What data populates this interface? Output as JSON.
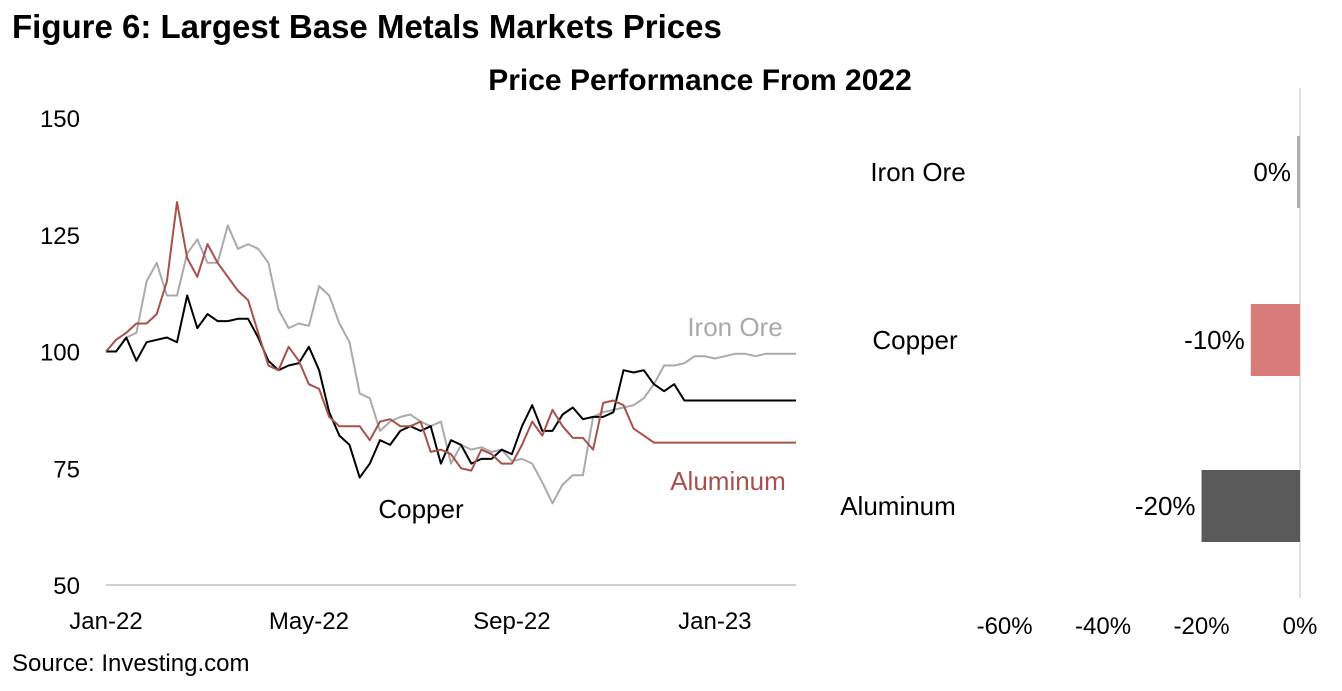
{
  "figure_title": "Figure 6: Largest Base Metals Markets Prices",
  "source": "Source: Investing.com",
  "chart_data": [
    {
      "type": "line",
      "title": "Price Performance From 2022",
      "xlabel": "",
      "ylabel": "",
      "ylim": [
        50,
        150
      ],
      "yticks": [
        50,
        75,
        100,
        125,
        150
      ],
      "xlim": [
        0,
        68
      ],
      "xtick_labels": [
        {
          "label": "Jan-22",
          "x": 0
        },
        {
          "label": "May-22",
          "x": 20
        },
        {
          "label": "Sep-22",
          "x": 40
        },
        {
          "label": "Jan-23",
          "x": 60
        }
      ],
      "series": [
        {
          "name": "Iron Ore",
          "label": "Iron Ore",
          "color": "#aaaaaa",
          "x": [
            0,
            1,
            2,
            3,
            4,
            5,
            6,
            7,
            8,
            9,
            10,
            11,
            12,
            13,
            14,
            15,
            16,
            17,
            18,
            19,
            20,
            21,
            22,
            23,
            24,
            25,
            26,
            27,
            28,
            29,
            30,
            31,
            32,
            33,
            34,
            35,
            36,
            37,
            38,
            39,
            40,
            41,
            42,
            43,
            44,
            45,
            46,
            47,
            48,
            49,
            50,
            51,
            52,
            53,
            54,
            55,
            56,
            57,
            58,
            59,
            60,
            61,
            62,
            63,
            64,
            65,
            66,
            67,
            68
          ],
          "values": [
            100,
            100,
            103,
            104,
            115,
            119,
            112,
            112,
            121,
            124,
            119,
            119,
            127,
            122,
            123,
            122,
            119,
            109,
            105,
            106,
            105.5,
            114,
            112,
            106,
            102,
            91,
            90,
            83,
            85,
            86,
            86.5,
            85,
            84,
            85,
            76,
            80,
            79,
            79.5,
            78.5,
            79,
            76.5,
            77,
            76,
            72,
            67.5,
            71.5,
            73.5,
            73.5,
            86,
            87,
            87.5,
            88,
            88.5,
            90,
            93,
            97,
            97,
            97.5,
            99,
            99,
            98.5,
            99,
            99.5,
            99.5,
            99,
            99.5,
            99.5,
            99.5,
            99.5
          ]
        },
        {
          "name": "Copper",
          "label": "Copper",
          "color": "#000000",
          "x": [
            0,
            1,
            2,
            3,
            4,
            5,
            6,
            7,
            8,
            9,
            10,
            11,
            12,
            13,
            14,
            15,
            16,
            17,
            18,
            19,
            20,
            21,
            22,
            23,
            24,
            25,
            26,
            27,
            28,
            29,
            30,
            31,
            32,
            33,
            34,
            35,
            36,
            37,
            38,
            39,
            40,
            41,
            42,
            43,
            44,
            45,
            46,
            47,
            48,
            49,
            50,
            51,
            52,
            53,
            54,
            55,
            56,
            57,
            58,
            59,
            60,
            61,
            62,
            63,
            64,
            65,
            66,
            67,
            68
          ],
          "values": [
            100,
            100,
            103,
            98,
            102,
            102.5,
            103,
            102,
            112,
            105,
            108,
            106.5,
            106.5,
            107,
            107,
            103,
            98,
            96,
            97,
            97.5,
            101,
            96,
            87,
            82,
            80,
            73,
            76,
            81,
            80,
            83,
            84,
            83,
            84,
            76,
            81,
            80,
            76,
            77,
            77,
            79,
            78,
            84,
            88.5,
            83,
            83,
            86.5,
            88,
            85.5,
            86,
            86,
            87,
            96,
            95.5,
            96,
            93,
            91.5,
            93,
            89.5,
            89.5,
            89.5,
            89.5,
            89.5,
            89.5,
            89.5,
            89.5,
            89.5,
            89.5,
            89.5,
            89.5
          ]
        },
        {
          "name": "Aluminum",
          "label": "Aluminum",
          "color": "#a8504c",
          "x": [
            0,
            1,
            2,
            3,
            4,
            5,
            6,
            7,
            8,
            9,
            10,
            11,
            12,
            13,
            14,
            15,
            16,
            17,
            18,
            19,
            20,
            21,
            22,
            23,
            24,
            25,
            26,
            27,
            28,
            29,
            30,
            31,
            32,
            33,
            34,
            35,
            36,
            37,
            38,
            39,
            40,
            41,
            42,
            43,
            44,
            45,
            46,
            47,
            48,
            49,
            50,
            51,
            52,
            53,
            54,
            55,
            56,
            57,
            58,
            59,
            60,
            61,
            62,
            63,
            64,
            65,
            66,
            67,
            68
          ],
          "values": [
            100,
            102.5,
            104,
            106,
            106,
            108,
            115,
            132,
            120,
            116,
            123,
            119,
            116,
            113,
            111,
            104,
            97,
            96,
            101,
            98,
            93,
            92,
            86,
            84,
            84,
            84,
            81,
            85,
            85.5,
            84,
            84,
            85,
            78.5,
            79,
            78,
            75,
            74.5,
            79,
            78,
            76,
            76,
            80,
            85,
            82,
            87.5,
            84,
            81.5,
            81.5,
            79,
            89,
            89.5,
            88.5,
            83.5,
            82,
            80.5,
            80.5,
            80.5,
            80.5,
            80.5,
            80.5,
            80.5,
            80.5,
            80.5,
            80.5,
            80.5,
            80.5,
            80.5,
            80.5,
            80.5
          ]
        }
      ]
    },
    {
      "type": "bar",
      "orientation": "horizontal",
      "title": "",
      "categories": [
        "Iron Ore",
        "Copper",
        "Aluminum"
      ],
      "values": [
        0,
        -10,
        -20
      ],
      "value_labels": [
        "0%",
        "-10%",
        "-20%"
      ],
      "colors": [
        "#b0b0b0",
        "#d97b78",
        "#595959"
      ],
      "xlim": [
        -65,
        0
      ],
      "xticks": [
        -60,
        -40,
        -20,
        0
      ],
      "xtick_labels": [
        "-60%",
        "-40%",
        "-20%",
        "0%"
      ]
    }
  ]
}
